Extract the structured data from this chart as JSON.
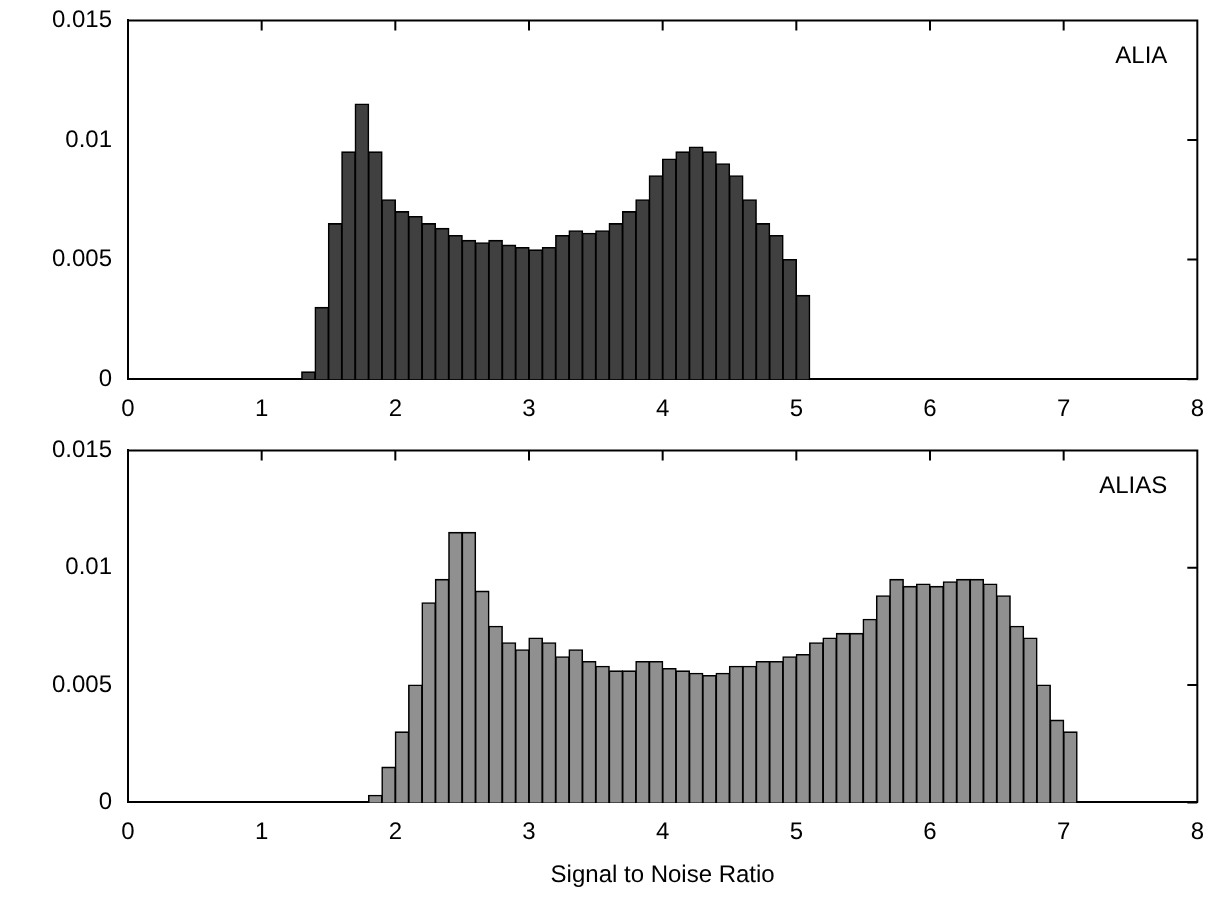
{
  "chart_data": [
    {
      "type": "histogram",
      "annotations": [
        "ALIA"
      ],
      "color": "#404040",
      "legend": false,
      "grid": false,
      "bins": [
        1.3,
        1.4,
        1.5,
        1.6,
        1.7,
        1.8,
        1.9,
        2.0,
        2.1,
        2.2,
        2.3,
        2.4,
        2.5,
        2.6,
        2.7,
        2.8,
        2.9,
        3.0,
        3.1,
        3.2,
        3.3,
        3.4,
        3.5,
        3.6,
        3.7,
        3.8,
        3.9,
        4.0,
        4.1,
        4.2,
        4.3,
        4.4,
        4.5,
        4.6,
        4.7,
        4.8,
        4.9,
        5.0,
        5.1
      ],
      "values": [
        0.0003,
        0.003,
        0.0065,
        0.0095,
        0.0115,
        0.0095,
        0.0075,
        0.007,
        0.0068,
        0.0065,
        0.0063,
        0.006,
        0.0058,
        0.0057,
        0.0058,
        0.0056,
        0.0055,
        0.0054,
        0.0055,
        0.006,
        0.0062,
        0.0061,
        0.0062,
        0.0065,
        0.007,
        0.0075,
        0.0085,
        0.0092,
        0.0095,
        0.0097,
        0.0095,
        0.009,
        0.0085,
        0.0075,
        0.0065,
        0.006,
        0.005,
        0.0035
      ],
      "xlim": [
        0,
        8
      ],
      "xticks": [
        0,
        1,
        2,
        3,
        4,
        5,
        6,
        7,
        8
      ],
      "ylim": [
        0,
        0.015
      ],
      "yticks": [
        0,
        0.005,
        0.01,
        0.015
      ]
    },
    {
      "type": "histogram",
      "annotations": [
        "ALIAS"
      ],
      "xlabel": "Signal to Noise Ratio",
      "color": "#909090",
      "legend": false,
      "grid": false,
      "bins": [
        1.8,
        1.9,
        2.0,
        2.1,
        2.2,
        2.3,
        2.4,
        2.5,
        2.6,
        2.7,
        2.8,
        2.9,
        3.0,
        3.1,
        3.2,
        3.3,
        3.4,
        3.5,
        3.6,
        3.7,
        3.8,
        3.9,
        4.0,
        4.1,
        4.2,
        4.3,
        4.4,
        4.5,
        4.6,
        4.7,
        4.8,
        4.9,
        5.0,
        5.1,
        5.2,
        5.3,
        5.4,
        5.5,
        5.6,
        5.7,
        5.8,
        5.9,
        6.0,
        6.1,
        6.2,
        6.3,
        6.4,
        6.5,
        6.6,
        6.7,
        6.8,
        6.9,
        7.0,
        7.1
      ],
      "values": [
        0.0003,
        0.0015,
        0.003,
        0.005,
        0.0085,
        0.0095,
        0.0115,
        0.0115,
        0.009,
        0.0075,
        0.0068,
        0.0065,
        0.007,
        0.0068,
        0.0062,
        0.0065,
        0.006,
        0.0058,
        0.0056,
        0.0056,
        0.006,
        0.006,
        0.0057,
        0.0056,
        0.0055,
        0.0054,
        0.0055,
        0.0058,
        0.0058,
        0.006,
        0.006,
        0.0062,
        0.0063,
        0.0068,
        0.007,
        0.0072,
        0.0072,
        0.0078,
        0.0088,
        0.0095,
        0.0092,
        0.0093,
        0.0092,
        0.0094,
        0.0095,
        0.0095,
        0.0093,
        0.0088,
        0.0075,
        0.007,
        0.005,
        0.0035,
        0.003
      ],
      "xlim": [
        0,
        8
      ],
      "xticks": [
        0,
        1,
        2,
        3,
        4,
        5,
        6,
        7,
        8
      ],
      "ylim": [
        0,
        0.015
      ],
      "yticks": [
        0,
        0.005,
        0.01,
        0.015
      ]
    }
  ]
}
